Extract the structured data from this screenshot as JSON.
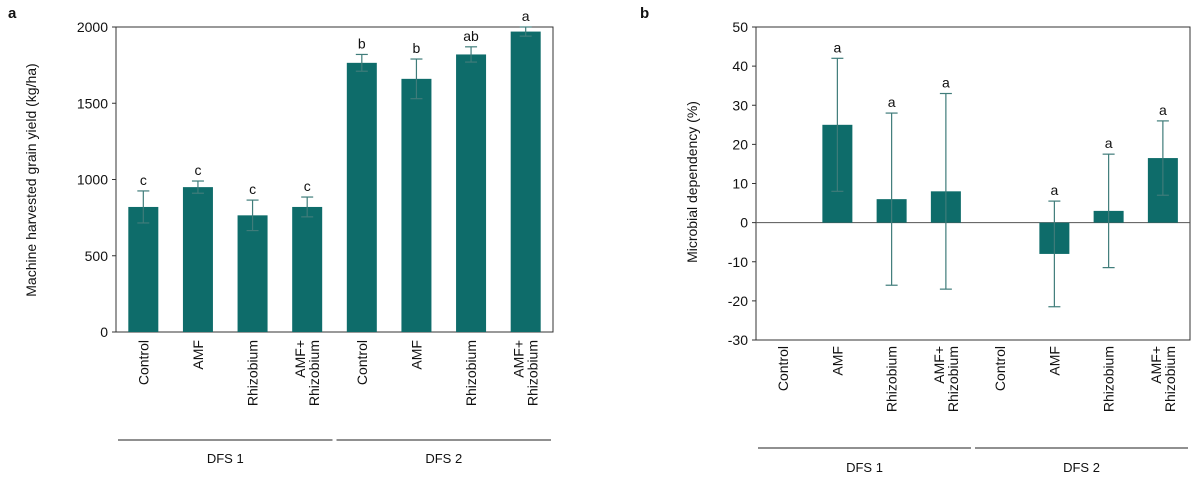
{
  "chart_data": [
    {
      "panel": "a",
      "type": "bar",
      "ylabel": "Machine harvested grain yield (kg/ha)",
      "xlabel": "",
      "ylim": [
        0,
        2000
      ],
      "yticks": [
        "0",
        "500",
        "1000",
        "1500",
        "2000"
      ],
      "grid": false,
      "color": "#0e6c6a",
      "categories": [
        "Control",
        "AMF",
        "Rhizobium",
        "AMF+\nRhizobium",
        "Control",
        "AMF",
        "Rhizobium",
        "AMF+\nRhizobium"
      ],
      "values": [
        820,
        950,
        765,
        820,
        1765,
        1660,
        1820,
        1970
      ],
      "errors": [
        105,
        40,
        100,
        65,
        55,
        130,
        50,
        30
      ],
      "significance": [
        "c",
        "c",
        "c",
        "c",
        "b",
        "b",
        "ab",
        "a"
      ],
      "groups": [
        {
          "label": "DFS 1",
          "from": 0,
          "to": 3
        },
        {
          "label": "DFS 2",
          "from": 4,
          "to": 7
        }
      ]
    },
    {
      "panel": "b",
      "type": "bar",
      "ylabel": "Microbial dependency (%)",
      "xlabel": "",
      "ylim": [
        -30,
        50
      ],
      "yticks": [
        "-30",
        "-20",
        "-10",
        "0",
        "10",
        "20",
        "30",
        "40",
        "50"
      ],
      "grid": false,
      "color": "#0e6c6a",
      "categories": [
        "Control",
        "AMF",
        "Rhizobium",
        "AMF+\nRhizobium",
        "Control",
        "AMF",
        "Rhizobium",
        "AMF+\nRhizobium"
      ],
      "values": [
        0,
        25,
        6,
        8,
        0,
        -8,
        3,
        16.5
      ],
      "errors": [
        0,
        17,
        22,
        25,
        0,
        13.5,
        14.5,
        9.5
      ],
      "significance": [
        "",
        "a",
        "a",
        "a",
        "",
        "a",
        "a",
        "a"
      ],
      "groups": [
        {
          "label": "DFS 1",
          "from": 0,
          "to": 3
        },
        {
          "label": "DFS 2",
          "from": 4,
          "to": 7
        }
      ]
    }
  ]
}
